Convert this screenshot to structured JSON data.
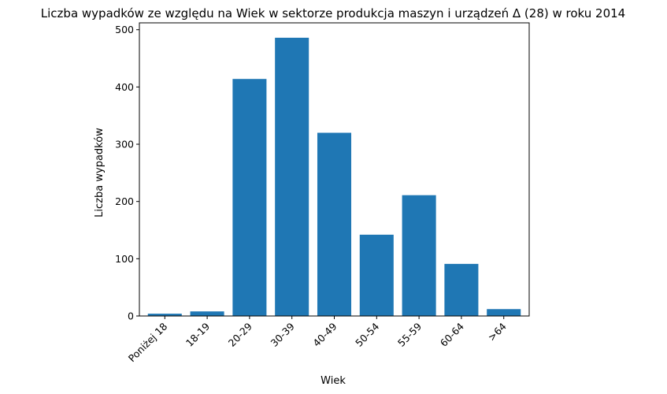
{
  "chart_data": {
    "type": "bar",
    "title": "Liczba wypadków ze względu na Wiek w sektorze produkcja maszyn i urządzeń Δ (28) w roku 2014",
    "xlabel": "Wiek",
    "ylabel": "Liczba wypadków",
    "categories": [
      "Poniżej 18",
      "18-19",
      "20-29",
      "30-39",
      "40-49",
      "50-54",
      "55-59",
      "60-64",
      ">64"
    ],
    "values": [
      4,
      8,
      414,
      486,
      320,
      142,
      211,
      91,
      12
    ],
    "ylim": [
      0,
      512
    ],
    "yticks": [
      0,
      100,
      200,
      300,
      400,
      500
    ],
    "grid": false,
    "colors": {
      "bar": "#1f77b4"
    }
  }
}
